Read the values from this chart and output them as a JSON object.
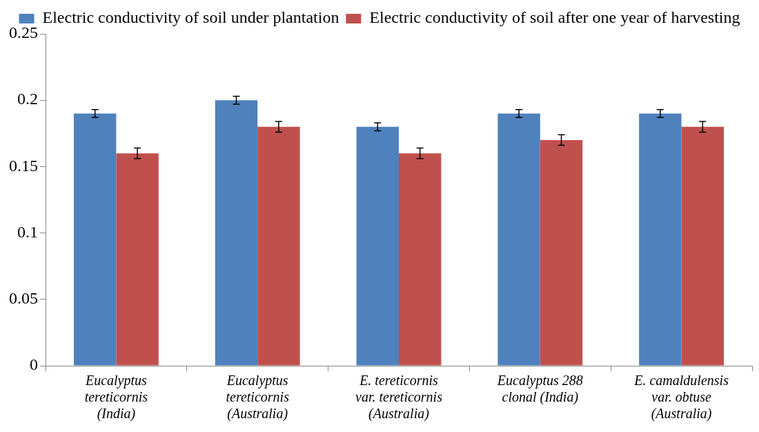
{
  "chart_data": {
    "type": "bar",
    "categories": [
      "Eucalyptus\ntereticornis\n(India)",
      "Eucalyptus\ntereticornis\n(Australia)",
      "E. tereticornis\nvar. tereticornis\n(Australia)",
      "Eucalyptus 288\nclonal (India)",
      "E. camaldulensis\nvar. obtuse\n(Australia)"
    ],
    "series": [
      {
        "name": "Electric conductivity of soil under plantation",
        "color": "#4f81bd",
        "values": [
          0.19,
          0.2,
          0.18,
          0.19,
          0.19
        ],
        "errors": [
          0.003,
          0.003,
          0.003,
          0.003,
          0.003
        ]
      },
      {
        "name": "Electric conductivity of soil after one year of harvesting",
        "color": "#c0504d",
        "values": [
          0.16,
          0.18,
          0.16,
          0.17,
          0.18
        ],
        "errors": [
          0.004,
          0.004,
          0.004,
          0.004,
          0.004
        ]
      }
    ],
    "ylim": [
      0,
      0.25
    ],
    "yticks": [
      0,
      0.05,
      0.1,
      0.15,
      0.2,
      0.25
    ],
    "grid": false,
    "legend": "top"
  }
}
